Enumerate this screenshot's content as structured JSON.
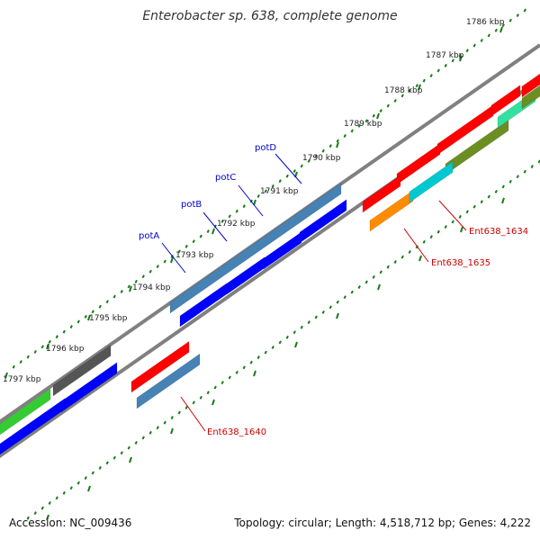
{
  "title": "Enterobacter sp. 638, complete genome",
  "footer": {
    "accession": "Accession: NC_009436",
    "summary": "Topology: circular; Length: 4,518,712 bp; Genes: 4,222"
  },
  "colors": {
    "background": "#ffffff",
    "backbone": "#808080",
    "tick": "#1a7a1a",
    "label_blue": "#0000cc",
    "label_red": "#cc0000"
  },
  "scale_labels": [
    "1786 kbp",
    "1787 kbp",
    "1788 kbp",
    "1789 kbp",
    "1790 kbp",
    "1791 kbp",
    "1792 kbp",
    "1793 kbp",
    "1794 kbp",
    "1795 kbp",
    "1796 kbp",
    "1797 kbp"
  ],
  "gene_labels": [
    {
      "text": "potD",
      "color": "#0000cc"
    },
    {
      "text": "potC",
      "color": "#0000cc"
    },
    {
      "text": "potB",
      "color": "#0000cc"
    },
    {
      "text": "potA",
      "color": "#0000cc"
    },
    {
      "text": "Ent638_1634",
      "color": "#cc0000"
    },
    {
      "text": "Ent638_1635",
      "color": "#cc0000"
    },
    {
      "text": "Ent638_1640",
      "color": "#cc0000"
    }
  ],
  "feature_colors": [
    "#ff0000",
    "#ff0000",
    "#ff0000",
    "#ff0000",
    "#ff0000",
    "#6b8e23",
    "#33e0a0",
    "#ff8c00",
    "#00c8d0",
    "#4682b4",
    "#0000ff",
    "#0000ff",
    "#0000ff",
    "#0000ff",
    "#ff0000",
    "#4682b4",
    "#555555",
    "#0000ff",
    "#33cc33",
    "#0000ff",
    "#6b8e23"
  ]
}
